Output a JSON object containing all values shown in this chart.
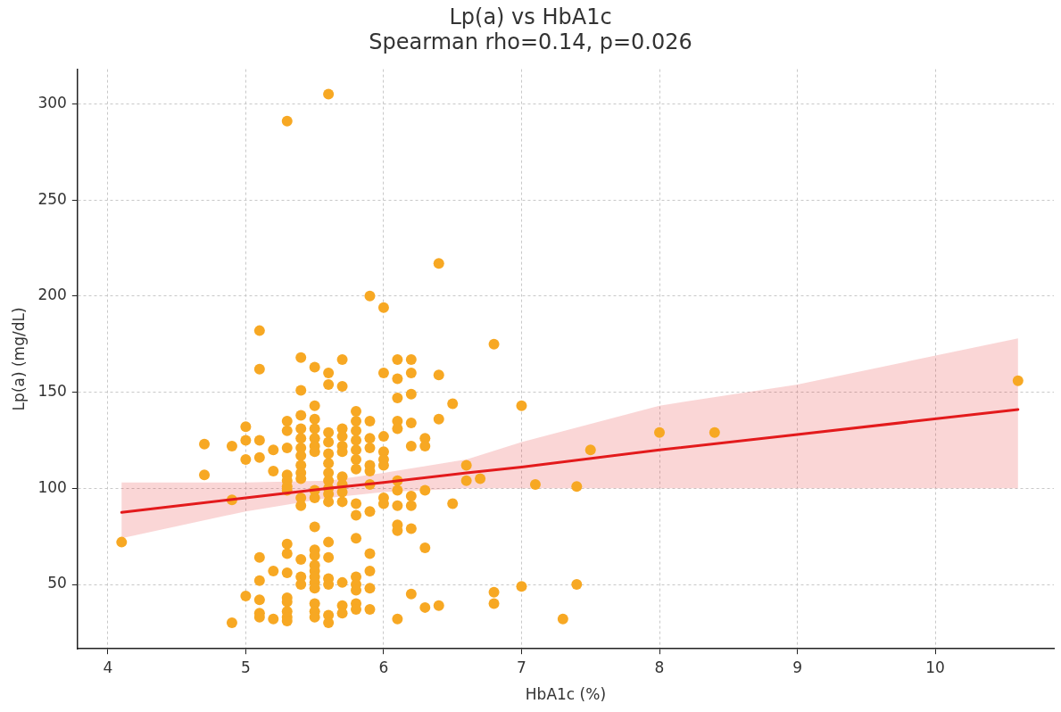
{
  "chart_data": {
    "type": "scatter",
    "title": "Lp(a) vs HbA1c",
    "subtitle": "Spearman rho=0.14, p=0.026",
    "xlabel": "HbA1c (%)",
    "ylabel": "Lp(a) (mg/dL)",
    "xlim": [
      3.78,
      10.86
    ],
    "ylim": [
      16.5,
      318
    ],
    "xticks": [
      4,
      5,
      6,
      7,
      8,
      9,
      10
    ],
    "yticks": [
      50,
      100,
      150,
      200,
      250,
      300
    ],
    "grid": true,
    "legend": false,
    "marker": "circle",
    "series": [
      {
        "type": "scatter",
        "color": "#f7a823",
        "x": [
          4.1,
          4.7,
          4.7,
          4.9,
          4.9,
          4.9,
          5.0,
          5.0,
          5.0,
          5.0,
          5.1,
          5.1,
          5.1,
          5.1,
          5.1,
          5.1,
          5.1,
          5.1,
          5.1,
          5.2,
          5.2,
          5.2,
          5.2,
          5.3,
          5.3,
          5.3,
          5.3,
          5.3,
          5.3,
          5.3,
          5.3,
          5.3,
          5.3,
          5.3,
          5.3,
          5.3,
          5.3,
          5.3,
          5.3,
          5.4,
          5.4,
          5.4,
          5.4,
          5.4,
          5.4,
          5.4,
          5.4,
          5.4,
          5.4,
          5.4,
          5.4,
          5.4,
          5.4,
          5.4,
          5.5,
          5.5,
          5.5,
          5.5,
          5.5,
          5.5,
          5.5,
          5.5,
          5.5,
          5.5,
          5.5,
          5.5,
          5.5,
          5.5,
          5.5,
          5.5,
          5.5,
          5.5,
          5.5,
          5.5,
          5.6,
          5.6,
          5.6,
          5.6,
          5.6,
          5.6,
          5.6,
          5.6,
          5.6,
          5.6,
          5.6,
          5.6,
          5.6,
          5.6,
          5.6,
          5.6,
          5.6,
          5.6,
          5.7,
          5.7,
          5.7,
          5.7,
          5.7,
          5.7,
          5.7,
          5.7,
          5.7,
          5.7,
          5.7,
          5.7,
          5.7,
          5.8,
          5.8,
          5.8,
          5.8,
          5.8,
          5.8,
          5.8,
          5.8,
          5.8,
          5.8,
          5.8,
          5.8,
          5.8,
          5.8,
          5.8,
          5.9,
          5.9,
          5.9,
          5.9,
          5.9,
          5.9,
          5.9,
          5.9,
          5.9,
          5.9,
          5.9,
          5.9,
          6.0,
          6.0,
          6.0,
          6.0,
          6.0,
          6.0,
          6.0,
          6.0,
          6.1,
          6.1,
          6.1,
          6.1,
          6.1,
          6.1,
          6.1,
          6.1,
          6.1,
          6.1,
          6.1,
          6.2,
          6.2,
          6.2,
          6.2,
          6.2,
          6.2,
          6.2,
          6.2,
          6.2,
          6.3,
          6.3,
          6.3,
          6.3,
          6.3,
          6.4,
          6.4,
          6.4,
          6.4,
          6.5,
          6.5,
          6.6,
          6.6,
          6.7,
          6.8,
          6.8,
          6.8,
          7.0,
          7.0,
          7.1,
          7.3,
          7.4,
          7.4,
          7.5,
          8.0,
          8.4,
          10.6
        ],
        "values": [
          72,
          123,
          107,
          122,
          94,
          30,
          132,
          125,
          115,
          44,
          182,
          162,
          125,
          116,
          64,
          52,
          42,
          35,
          33,
          120,
          109,
          57,
          32,
          291,
          135,
          130,
          121,
          107,
          104,
          101,
          99,
          71,
          66,
          56,
          43,
          41,
          36,
          33,
          31,
          168,
          151,
          138,
          131,
          126,
          121,
          117,
          112,
          108,
          105,
          95,
          91,
          63,
          54,
          50,
          163,
          143,
          136,
          131,
          126,
          122,
          119,
          99,
          95,
          80,
          68,
          65,
          60,
          57,
          54,
          51,
          48,
          40,
          36,
          33,
          305,
          160,
          154,
          129,
          124,
          118,
          113,
          108,
          104,
          100,
          97,
          93,
          72,
          64,
          53,
          50,
          34,
          30,
          167,
          153,
          131,
          127,
          122,
          119,
          106,
          102,
          98,
          93,
          51,
          39,
          35,
          140,
          135,
          130,
          125,
          120,
          115,
          110,
          92,
          86,
          74,
          54,
          50,
          47,
          40,
          37,
          200,
          135,
          126,
          121,
          112,
          109,
          102,
          88,
          66,
          57,
          48,
          37,
          194,
          160,
          127,
          119,
          115,
          112,
          95,
          92,
          167,
          157,
          147,
          135,
          131,
          104,
          99,
          91,
          81,
          78,
          32,
          167,
          160,
          149,
          134,
          122,
          96,
          91,
          79,
          45,
          126,
          122,
          99,
          69,
          38,
          217,
          159,
          136,
          39,
          144,
          92,
          112,
          104,
          105,
          175,
          46,
          40,
          143,
          49,
          102,
          32,
          101,
          50,
          120,
          129,
          129,
          156
        ]
      },
      {
        "type": "line",
        "color": "#e31a1c",
        "line_style": "solid",
        "marker": "none",
        "x": [
          4.1,
          5.0,
          5.6,
          6.0,
          6.6,
          7.0,
          8.0,
          9.0,
          10.6
        ],
        "values": [
          87.5,
          95,
          100,
          103,
          108,
          111,
          120,
          128,
          141
        ],
        "lower": [
          74,
          88,
          95,
          98,
          100,
          100,
          100,
          100,
          100
        ],
        "upper": [
          103,
          103,
          104,
          108,
          115,
          124,
          143,
          154,
          178
        ]
      }
    ]
  }
}
